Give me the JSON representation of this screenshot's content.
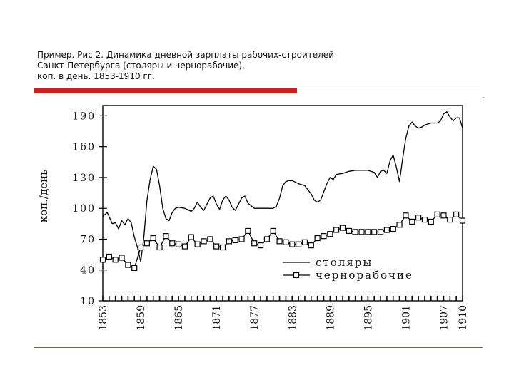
{
  "caption": {
    "line1": "Пример. Рис 2. Динамика дневной зарплаты рабочих-строителей",
    "line2": "Санкт-Петербурга (столяры и чернорабочие),",
    "line3": "коп. в день. 1853-1910 гг."
  },
  "chart_data": {
    "type": "line",
    "title": "Динамика дневной зарплаты рабочих-строителей Санкт-Петербурга",
    "xlabel": "",
    "ylabel": "коп./день",
    "ylim": [
      10,
      200
    ],
    "xlim": [
      1853,
      1910
    ],
    "yticks": [
      10,
      40,
      70,
      100,
      130,
      160,
      190
    ],
    "ytick_labels": [
      "10",
      "40",
      "70",
      "100",
      "130",
      "160",
      "190"
    ],
    "xtick_labels": [
      "1853",
      "1859",
      "1865",
      "1871",
      "1877",
      "1883",
      "1889",
      "1895",
      "1901",
      "1907",
      "1910"
    ],
    "xtick_values": [
      1853,
      1859,
      1865,
      1871,
      1877,
      1883,
      1889,
      1895,
      1901,
      1907,
      1910
    ],
    "legend_position": "lower-right",
    "series": [
      {
        "name": "столяры",
        "marker": "none",
        "points": [
          [
            1853,
            92
          ],
          [
            1853.7,
            96
          ],
          [
            1854.5,
            85
          ],
          [
            1855,
            86
          ],
          [
            1855.5,
            80
          ],
          [
            1856,
            88
          ],
          [
            1856.5,
            84
          ],
          [
            1857,
            90
          ],
          [
            1857.5,
            86
          ],
          [
            1858,
            72
          ],
          [
            1858.5,
            62
          ],
          [
            1859,
            48
          ],
          [
            1859.5,
            72
          ],
          [
            1860,
            108
          ],
          [
            1860.5,
            128
          ],
          [
            1861,
            141
          ],
          [
            1861.5,
            138
          ],
          [
            1862,
            122
          ],
          [
            1862.5,
            100
          ],
          [
            1863,
            90
          ],
          [
            1863.5,
            88
          ],
          [
            1864,
            96
          ],
          [
            1864.5,
            100
          ],
          [
            1865,
            101
          ],
          [
            1866,
            100
          ],
          [
            1867,
            97
          ],
          [
            1867.5,
            100
          ],
          [
            1868,
            106
          ],
          [
            1868.5,
            101
          ],
          [
            1869,
            98
          ],
          [
            1869.5,
            104
          ],
          [
            1870,
            110
          ],
          [
            1870.5,
            112
          ],
          [
            1871,
            104
          ],
          [
            1871.5,
            99
          ],
          [
            1872,
            108
          ],
          [
            1872.5,
            112
          ],
          [
            1873,
            108
          ],
          [
            1873.5,
            101
          ],
          [
            1874,
            98
          ],
          [
            1874.5,
            104
          ],
          [
            1875,
            110
          ],
          [
            1875.5,
            112
          ],
          [
            1876,
            105
          ],
          [
            1877,
            100
          ],
          [
            1879,
            100
          ],
          [
            1880,
            100
          ],
          [
            1880.5,
            102
          ],
          [
            1881,
            110
          ],
          [
            1881.5,
            122
          ],
          [
            1882,
            126
          ],
          [
            1882.5,
            127
          ],
          [
            1883,
            127
          ],
          [
            1884,
            124
          ],
          [
            1885,
            122
          ],
          [
            1885.5,
            118
          ],
          [
            1886,
            114
          ],
          [
            1886.5,
            108
          ],
          [
            1887,
            106
          ],
          [
            1887.5,
            108
          ],
          [
            1888,
            116
          ],
          [
            1888.5,
            124
          ],
          [
            1889,
            130
          ],
          [
            1889.5,
            128
          ],
          [
            1890,
            133
          ],
          [
            1891,
            134
          ],
          [
            1892,
            136
          ],
          [
            1893,
            137
          ],
          [
            1894,
            137
          ],
          [
            1895,
            137
          ],
          [
            1896,
            135
          ],
          [
            1896.5,
            130
          ],
          [
            1897,
            136
          ],
          [
            1897.5,
            137
          ],
          [
            1898,
            134
          ],
          [
            1898.5,
            146
          ],
          [
            1899,
            152
          ],
          [
            1899.5,
            140
          ],
          [
            1900,
            126
          ],
          [
            1900.5,
            148
          ],
          [
            1901,
            168
          ],
          [
            1901.5,
            180
          ],
          [
            1902,
            184
          ],
          [
            1902.5,
            180
          ],
          [
            1903,
            178
          ],
          [
            1903.5,
            179
          ],
          [
            1904,
            181
          ],
          [
            1905,
            183
          ],
          [
            1906,
            183
          ],
          [
            1906.5,
            185
          ],
          [
            1907,
            192
          ],
          [
            1907.5,
            194
          ],
          [
            1908,
            189
          ],
          [
            1908.5,
            185
          ],
          [
            1909,
            188
          ],
          [
            1909.5,
            188
          ],
          [
            1910,
            178
          ]
        ]
      },
      {
        "name": "чернорабочие",
        "marker": "square",
        "points": [
          [
            1853,
            50
          ],
          [
            1854,
            53
          ],
          [
            1855,
            50
          ],
          [
            1856,
            52
          ],
          [
            1857,
            45
          ],
          [
            1858,
            42
          ],
          [
            1859,
            62
          ],
          [
            1860,
            66
          ],
          [
            1861,
            71
          ],
          [
            1862,
            62
          ],
          [
            1863,
            73
          ],
          [
            1864,
            66
          ],
          [
            1865,
            65
          ],
          [
            1866,
            63
          ],
          [
            1867,
            72
          ],
          [
            1868,
            65
          ],
          [
            1869,
            68
          ],
          [
            1870,
            70
          ],
          [
            1871,
            63
          ],
          [
            1872,
            62
          ],
          [
            1873,
            68
          ],
          [
            1874,
            69
          ],
          [
            1875,
            70
          ],
          [
            1876,
            78
          ],
          [
            1877,
            66
          ],
          [
            1878,
            64
          ],
          [
            1879,
            70
          ],
          [
            1880,
            78
          ],
          [
            1881,
            68
          ],
          [
            1882,
            67
          ],
          [
            1883,
            65
          ],
          [
            1884,
            65
          ],
          [
            1885,
            67
          ],
          [
            1886,
            64
          ],
          [
            1887,
            71
          ],
          [
            1888,
            73
          ],
          [
            1889,
            75
          ],
          [
            1890,
            79
          ],
          [
            1891,
            81
          ],
          [
            1892,
            78
          ],
          [
            1893,
            77
          ],
          [
            1894,
            77
          ],
          [
            1895,
            77
          ],
          [
            1896,
            77
          ],
          [
            1897,
            77
          ],
          [
            1898,
            79
          ],
          [
            1899,
            80
          ],
          [
            1900,
            84
          ],
          [
            1901,
            93
          ],
          [
            1902,
            87
          ],
          [
            1903,
            91
          ],
          [
            1904,
            89
          ],
          [
            1905,
            87
          ],
          [
            1906,
            94
          ],
          [
            1907,
            93
          ],
          [
            1908,
            89
          ],
          [
            1909,
            94
          ],
          [
            1910,
            88
          ]
        ]
      }
    ]
  }
}
